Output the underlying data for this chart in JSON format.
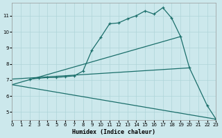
{
  "xlabel": "Humidex (Indice chaleur)",
  "bg_color": "#cce8ec",
  "grid_color": "#aed4d8",
  "line_color": "#1a6e6a",
  "xlim": [
    0,
    23
  ],
  "ylim": [
    4.5,
    11.8
  ],
  "yticks": [
    5,
    6,
    7,
    8,
    9,
    10,
    11
  ],
  "xticks": [
    0,
    1,
    2,
    3,
    4,
    5,
    6,
    7,
    8,
    9,
    10,
    11,
    12,
    13,
    14,
    15,
    16,
    17,
    18,
    19,
    20,
    21,
    22,
    23
  ],
  "series": [
    {
      "x": [
        2,
        3,
        4,
        5,
        6,
        7,
        8,
        9,
        10,
        11,
        12,
        13,
        14,
        15,
        16,
        17,
        18,
        19,
        20,
        22,
        23
      ],
      "y": [
        7.05,
        7.1,
        7.15,
        7.15,
        7.2,
        7.25,
        7.55,
        8.85,
        9.65,
        10.5,
        10.55,
        10.8,
        11.0,
        11.3,
        11.1,
        11.5,
        10.85,
        9.7,
        7.75,
        5.4,
        4.55
      ],
      "marker": true,
      "lw": 0.9
    },
    {
      "x": [
        0,
        19
      ],
      "y": [
        6.7,
        9.7
      ],
      "marker": false,
      "lw": 0.9
    },
    {
      "x": [
        0,
        20
      ],
      "y": [
        7.05,
        7.75
      ],
      "marker": false,
      "lw": 0.9
    },
    {
      "x": [
        0,
        23
      ],
      "y": [
        6.7,
        4.55
      ],
      "marker": false,
      "lw": 0.9
    }
  ]
}
